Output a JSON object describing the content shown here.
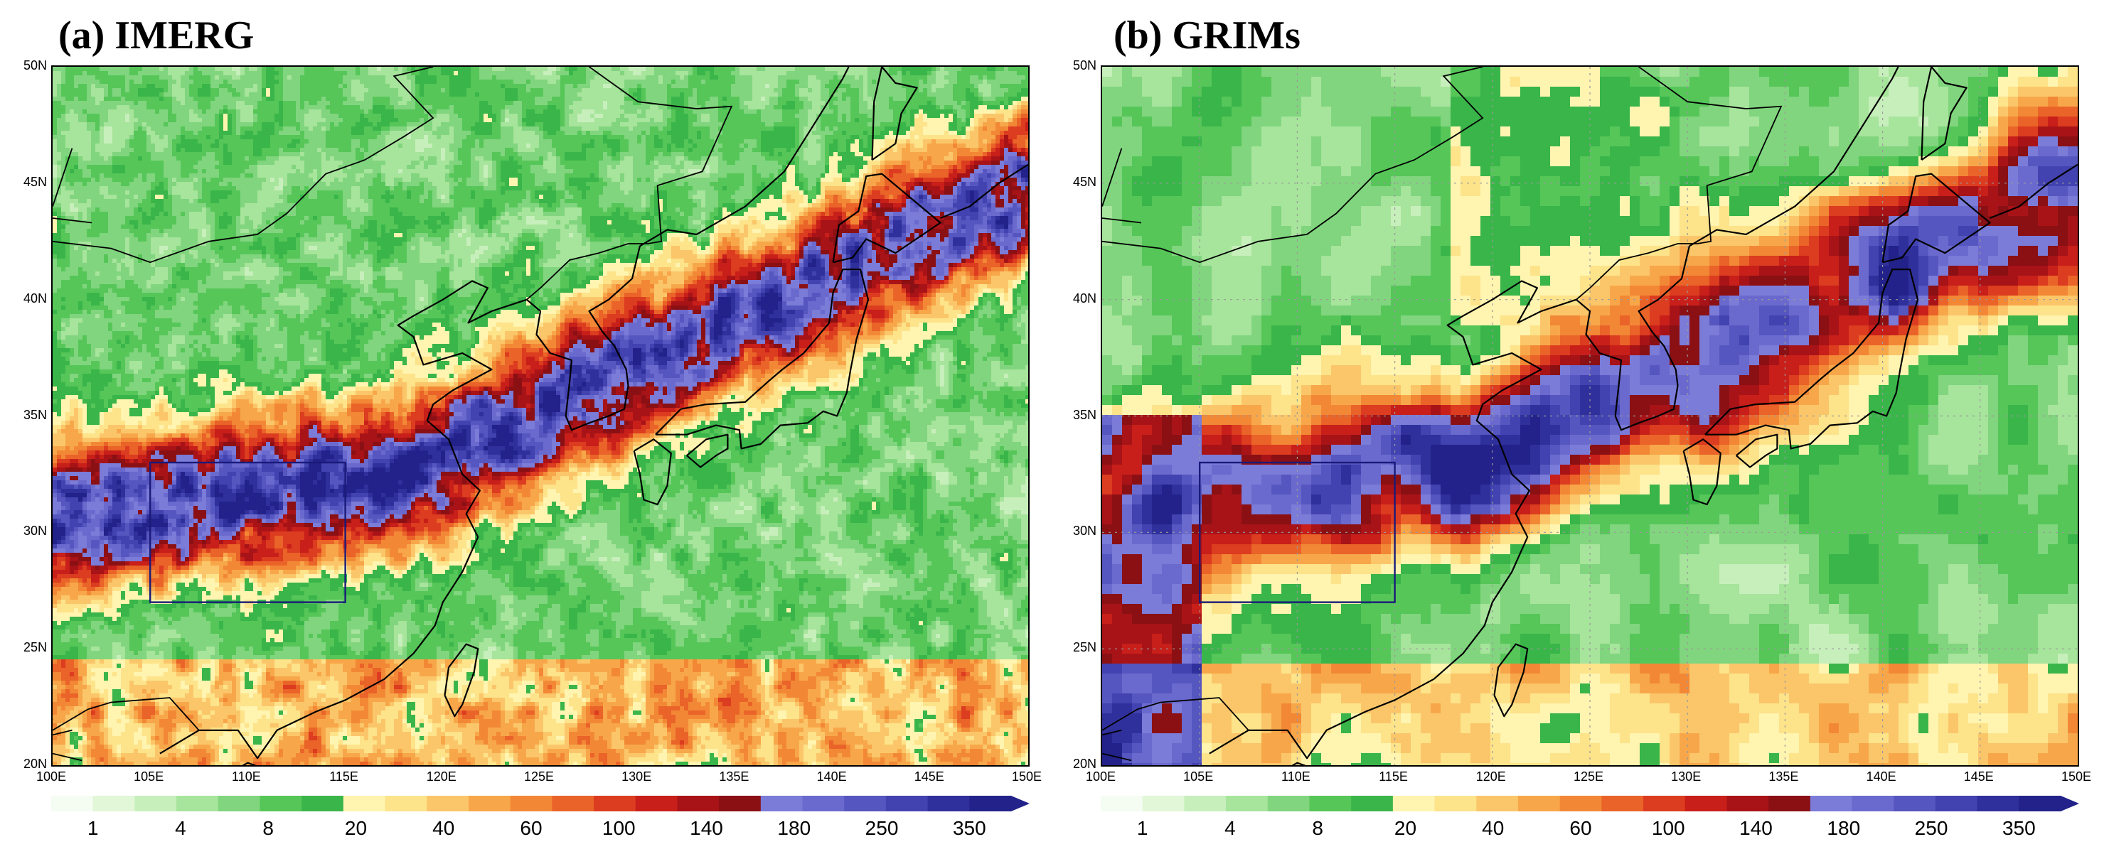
{
  "panels": [
    {
      "id": "a",
      "title": "(a) IMERG",
      "lat_ticks": [
        "50N",
        "45N",
        "40N",
        "35N",
        "30N",
        "25N",
        "20N"
      ],
      "lon_ticks": [
        "100E",
        "105E",
        "110E",
        "115E",
        "120E",
        "125E",
        "130E",
        "135E",
        "140E",
        "145E",
        "150E"
      ],
      "box_region": {
        "lon": [
          105,
          115
        ],
        "lat": [
          27,
          33
        ]
      },
      "field_style": "fine"
    },
    {
      "id": "b",
      "title": "(b) GRIMs",
      "lat_ticks": [
        "50N",
        "45N",
        "40N",
        "35N",
        "30N",
        "25N",
        "20N"
      ],
      "lon_ticks": [
        "100E",
        "105E",
        "110E",
        "115E",
        "120E",
        "125E",
        "130E",
        "135E",
        "140E",
        "145E",
        "150E"
      ],
      "box_region": {
        "lon": [
          105,
          115
        ],
        "lat": [
          27,
          33
        ]
      },
      "field_style": "coarse"
    }
  ],
  "colorbar": {
    "labels": [
      "1",
      "4",
      "8",
      "20",
      "40",
      "60",
      "100",
      "140",
      "180",
      "250",
      "350"
    ],
    "colors": [
      "#f5fdf2",
      "#e2f7d8",
      "#c7efbb",
      "#a7e49c",
      "#81d57e",
      "#56c659",
      "#3ab54a",
      "#fff4b0",
      "#fde38a",
      "#fbc66a",
      "#f7a74a",
      "#f28836",
      "#ea6328",
      "#dc3c1f",
      "#c81f1a",
      "#a81317",
      "#8a1014",
      "#7b7bd8",
      "#6a6ace",
      "#5656c0",
      "#4242b0",
      "#30309c",
      "#22228a"
    ]
  },
  "map": {
    "lon_range": [
      100,
      150
    ],
    "lat_range": [
      20,
      50
    ]
  }
}
